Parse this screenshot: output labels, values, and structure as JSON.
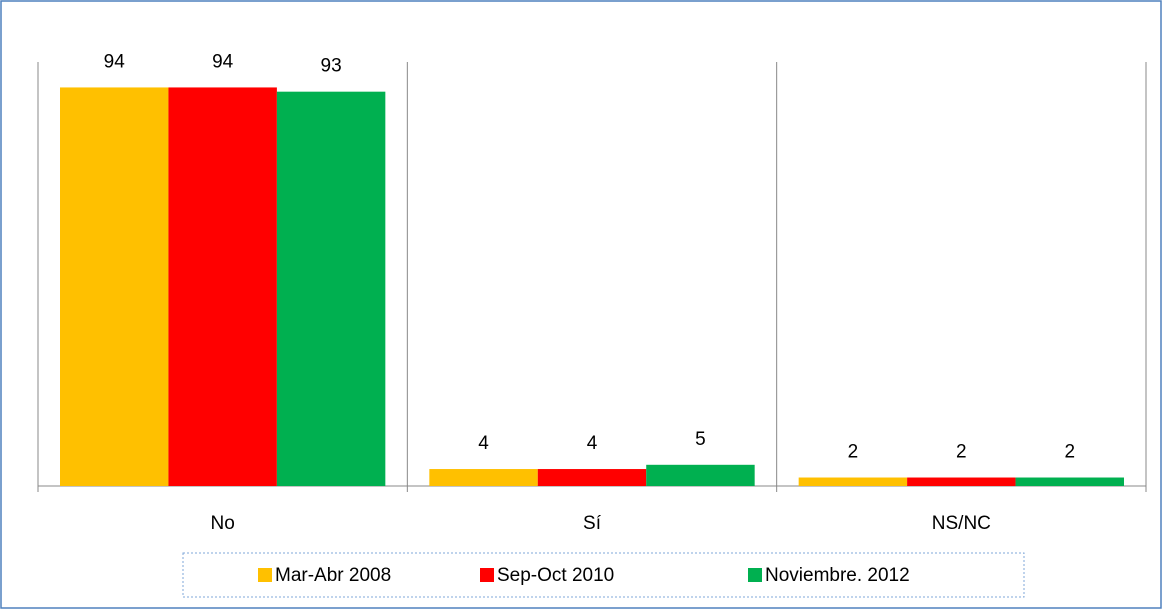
{
  "chart_data": {
    "type": "bar",
    "categories": [
      "No",
      "Sí",
      "NS/NC"
    ],
    "series": [
      {
        "name": "Mar-Abr 2008",
        "color": "#ffc000",
        "values": [
          94,
          4,
          2
        ]
      },
      {
        "name": "Sep-Oct 2010",
        "color": "#ff0000",
        "values": [
          94,
          4,
          2
        ]
      },
      {
        "name": "Noviembre. 2012",
        "color": "#00b050",
        "values": [
          93,
          5,
          2
        ]
      }
    ],
    "ylim": [
      0,
      100
    ],
    "legend": "bottom"
  }
}
